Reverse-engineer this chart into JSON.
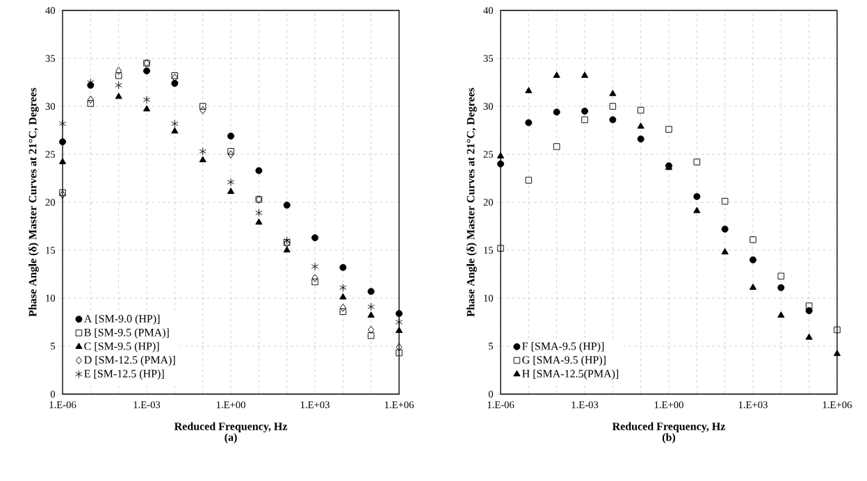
{
  "chart_data": [
    {
      "type": "scatter",
      "xlabel": "Reduced Frequency, Hz",
      "ylabel": "Phase Angle (δ) Master Curves at 21°C, Degrees",
      "annotations": [
        "(a)"
      ],
      "categories": [
        "1.E-06",
        null,
        null,
        "1.E-03",
        null,
        null,
        "1.E+00",
        null,
        null,
        "1.E+03",
        null,
        null,
        "1.E+06"
      ],
      "ylim": [
        0,
        40
      ],
      "yticks": [
        0,
        5,
        10,
        15,
        20,
        25,
        30,
        35,
        40
      ],
      "grid": true,
      "legend": "bottom left",
      "series": [
        {
          "name": "A [SM-9.0 (HP)]",
          "color": "#000000",
          "marker": "circle",
          "values": [
            26.3,
            32.2,
            null,
            33.7,
            32.4,
            null,
            26.9,
            23.3,
            19.7,
            16.3,
            13.2,
            10.7,
            8.4
          ]
        },
        {
          "name": "B [SM-9.5 (PMA)]",
          "color": "#000000",
          "marker": "square",
          "values": [
            21.0,
            30.3,
            33.2,
            34.5,
            33.2,
            30.0,
            25.3,
            20.3,
            15.8,
            11.7,
            8.6,
            6.1,
            4.3
          ]
        },
        {
          "name": "C [SM-9.5 (HP)]",
          "color": "#000000",
          "marker": "triangle",
          "values": [
            24.2,
            null,
            31.0,
            29.7,
            27.4,
            24.4,
            21.1,
            17.9,
            15.0,
            null,
            10.1,
            8.2,
            6.6
          ]
        },
        {
          "name": "D [SM-12.5 (PMA)]",
          "color": "#000000",
          "marker": "diamond",
          "values": [
            20.8,
            30.7,
            33.7,
            34.5,
            33.0,
            29.6,
            25.0,
            20.3,
            15.7,
            12.1,
            9.0,
            6.7,
            4.9
          ]
        },
        {
          "name": "E [SM-12.5 (HP)]",
          "color": "#000000",
          "marker": "cross",
          "values": [
            28.2,
            32.5,
            32.2,
            30.7,
            28.2,
            25.3,
            22.1,
            18.9,
            16.0,
            13.3,
            11.1,
            9.1,
            7.5
          ]
        }
      ]
    },
    {
      "type": "scatter",
      "xlabel": "Reduced Frequency, Hz",
      "ylabel": "Phase Angle (δ) Master Curves at 21°C, Degrees",
      "annotations": [
        "(b)"
      ],
      "categories": [
        "1.E-06",
        null,
        null,
        "1.E-03",
        null,
        null,
        "1.E+00",
        null,
        null,
        "1.E+03",
        null,
        null,
        "1.E+06"
      ],
      "ylim": [
        0,
        40
      ],
      "yticks": [
        0,
        5,
        10,
        15,
        20,
        25,
        30,
        35,
        40
      ],
      "grid": true,
      "legend": "bottom left",
      "series": [
        {
          "name": "F [SMA-9.5 (HP)]",
          "color": "#000000",
          "marker": "circle",
          "values": [
            24.0,
            28.3,
            29.4,
            29.5,
            28.6,
            26.6,
            23.8,
            20.6,
            17.2,
            14.0,
            11.1,
            8.7,
            null
          ]
        },
        {
          "name": "G [SMA-9.5 (HP)]",
          "color": "#000000",
          "marker": "square",
          "values": [
            15.2,
            22.3,
            25.8,
            28.6,
            30.0,
            29.6,
            27.6,
            24.2,
            20.1,
            16.1,
            12.3,
            9.2,
            6.7
          ]
        },
        {
          "name": "H [SMA-12.5(PMA)]",
          "color": "#000000",
          "marker": "triangle",
          "values": [
            24.8,
            31.6,
            33.2,
            33.2,
            31.3,
            27.9,
            23.6,
            19.1,
            14.8,
            11.1,
            8.2,
            5.9,
            4.2
          ]
        }
      ]
    }
  ]
}
